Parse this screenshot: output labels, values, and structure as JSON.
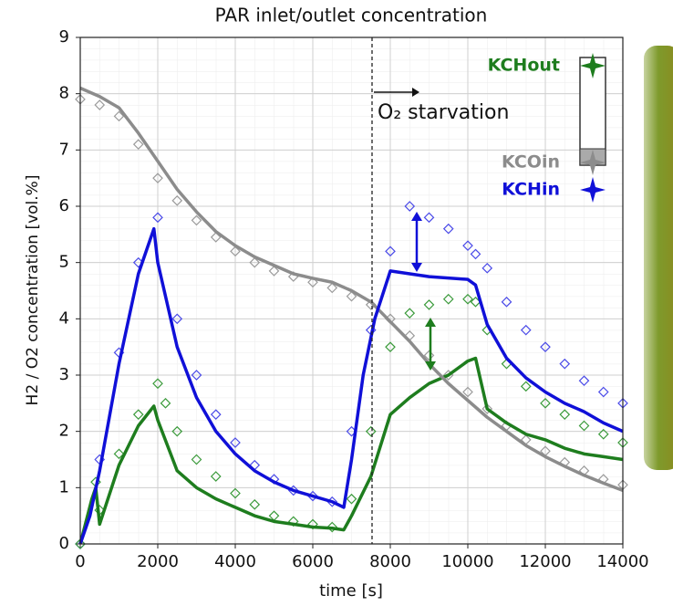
{
  "chart_data": {
    "type": "line",
    "title": "PAR inlet/outlet concentration",
    "xlabel": "time [s]",
    "ylabel": "H2 / O2 concentration [vol.%]",
    "annotation": "O₂ starvation",
    "xlim": [
      0,
      14000
    ],
    "xticks": [
      0,
      2000,
      4000,
      6000,
      8000,
      10000,
      12000,
      14000
    ],
    "ylim": [
      0,
      9
    ],
    "yticks": [
      0,
      1,
      2,
      3,
      4,
      5,
      6,
      7,
      8,
      9
    ],
    "grid": true,
    "legend": "upper right",
    "series": [
      {
        "name": "KCHout",
        "color": "#1e7d1e",
        "style": "line",
        "x": [
          0,
          300,
          400,
          500,
          1000,
          1500,
          1900,
          2000,
          2500,
          3000,
          3500,
          4000,
          4500,
          5000,
          5500,
          6000,
          6500,
          6800,
          7000,
          7500,
          8000,
          8500,
          9000,
          9500,
          10000,
          10200,
          10500,
          11000,
          11500,
          12000,
          12500,
          13000,
          13500,
          14000
        ],
        "values": [
          0,
          0.8,
          1.0,
          0.35,
          1.4,
          2.1,
          2.45,
          2.2,
          1.3,
          1.0,
          0.8,
          0.65,
          0.5,
          0.4,
          0.35,
          0.3,
          0.28,
          0.25,
          0.5,
          1.2,
          2.3,
          2.6,
          2.85,
          3.0,
          3.25,
          3.3,
          2.4,
          2.15,
          1.95,
          1.85,
          1.7,
          1.6,
          1.55,
          1.5
        ]
      },
      {
        "name": "KCOin",
        "color": "#8c8c8c",
        "style": "line",
        "x": [
          0,
          500,
          1000,
          1500,
          2000,
          2500,
          3000,
          3500,
          4000,
          4500,
          5000,
          5500,
          6000,
          6500,
          7000,
          7500,
          8000,
          8500,
          9000,
          9500,
          10000,
          10500,
          11000,
          11500,
          12000,
          12500,
          13000,
          13500,
          14000
        ],
        "values": [
          8.1,
          7.95,
          7.75,
          7.3,
          6.8,
          6.3,
          5.9,
          5.55,
          5.3,
          5.1,
          4.95,
          4.8,
          4.72,
          4.65,
          4.5,
          4.3,
          3.95,
          3.6,
          3.2,
          2.85,
          2.55,
          2.25,
          2.0,
          1.75,
          1.55,
          1.38,
          1.22,
          1.08,
          0.95
        ]
      },
      {
        "name": "KCHin",
        "color": "#1010d8",
        "style": "line",
        "x": [
          0,
          250,
          500,
          1000,
          1500,
          1900,
          2000,
          2500,
          3000,
          3500,
          4000,
          4500,
          5000,
          5500,
          6000,
          6500,
          6800,
          7000,
          7300,
          7600,
          8000,
          9000,
          10000,
          10200,
          10500,
          11000,
          11500,
          12000,
          12500,
          13000,
          13500,
          14000
        ],
        "values": [
          0,
          0.5,
          1.3,
          3.2,
          4.8,
          5.6,
          5.0,
          3.5,
          2.6,
          2.0,
          1.6,
          1.3,
          1.1,
          0.95,
          0.85,
          0.75,
          0.65,
          1.5,
          3.0,
          4.0,
          4.85,
          4.75,
          4.7,
          4.6,
          3.9,
          3.3,
          2.95,
          2.7,
          2.5,
          2.35,
          2.15,
          2.0
        ]
      },
      {
        "color": "#9a9a9a",
        "style": "marker",
        "x": [
          0,
          500,
          1000,
          1500,
          2000,
          2500,
          3000,
          3500,
          4000,
          4500,
          5000,
          5500,
          6000,
          6500,
          7000,
          7500,
          8000,
          8500,
          9000,
          9500,
          10000,
          10500,
          11000,
          11500,
          12000,
          12500,
          13000,
          13500,
          14000
        ],
        "values": [
          7.9,
          7.8,
          7.6,
          7.1,
          6.5,
          6.1,
          5.75,
          5.45,
          5.2,
          5.0,
          4.85,
          4.75,
          4.65,
          4.55,
          4.4,
          4.25,
          4.0,
          3.7,
          3.35,
          3.0,
          2.7,
          2.4,
          2.1,
          1.85,
          1.65,
          1.45,
          1.3,
          1.15,
          1.05
        ]
      },
      {
        "color": "#4a4ae8",
        "style": "marker",
        "x": [
          0,
          500,
          1000,
          1500,
          2000,
          2500,
          3000,
          3500,
          4000,
          4500,
          5000,
          5500,
          6000,
          6500,
          7000,
          7500,
          8000,
          8500,
          9000,
          9500,
          10000,
          10200,
          10500,
          11000,
          11500,
          12000,
          12500,
          13000,
          13500,
          14000
        ],
        "values": [
          0,
          1.5,
          3.4,
          5.0,
          5.8,
          4.0,
          3.0,
          2.3,
          1.8,
          1.4,
          1.15,
          0.95,
          0.85,
          0.75,
          2.0,
          3.8,
          5.2,
          6.0,
          5.8,
          5.6,
          5.3,
          5.15,
          4.9,
          4.3,
          3.8,
          3.5,
          3.2,
          2.9,
          2.7,
          2.5
        ]
      },
      {
        "color": "#3a9a3a",
        "style": "marker",
        "x": [
          0,
          400,
          500,
          1000,
          1500,
          2000,
          2200,
          2500,
          3000,
          3500,
          4000,
          4500,
          5000,
          5500,
          6000,
          6500,
          7000,
          7500,
          8000,
          8500,
          9000,
          9500,
          10000,
          10200,
          10500,
          11000,
          11500,
          12000,
          12500,
          13000,
          13500,
          14000
        ],
        "values": [
          0,
          1.1,
          0.6,
          1.6,
          2.3,
          2.85,
          2.5,
          2.0,
          1.5,
          1.2,
          0.9,
          0.7,
          0.5,
          0.4,
          0.35,
          0.3,
          0.8,
          2.0,
          3.5,
          4.1,
          4.25,
          4.35,
          4.35,
          4.3,
          3.8,
          3.2,
          2.8,
          2.5,
          2.3,
          2.1,
          1.95,
          1.8
        ]
      }
    ]
  }
}
